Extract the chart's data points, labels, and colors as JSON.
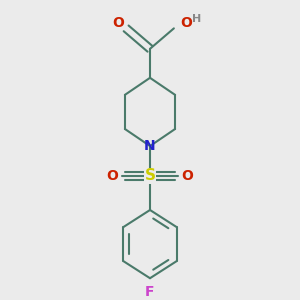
{
  "background_color": "#ebebeb",
  "bond_color": "#4a7a6a",
  "bond_width": 1.5,
  "N_color": "#2222cc",
  "S_color": "#cccc00",
  "O_color": "#cc2200",
  "F_color": "#cc44cc",
  "H_color": "#888888",
  "figsize": [
    3.0,
    3.0
  ],
  "dpi": 100,
  "xlim": [
    -0.55,
    0.55
  ],
  "ylim": [
    -0.82,
    0.82
  ]
}
